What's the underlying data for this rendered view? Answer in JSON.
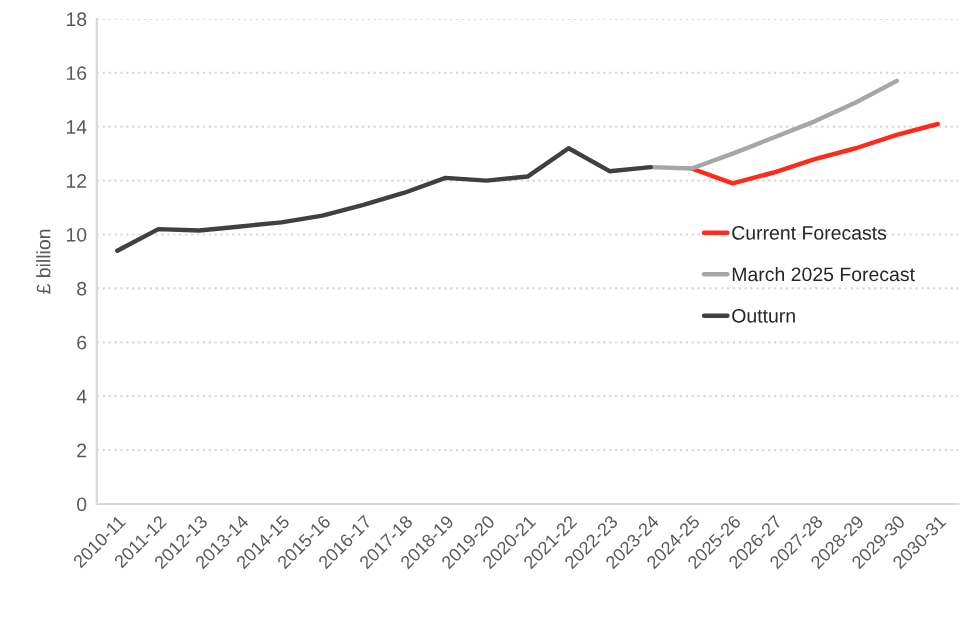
{
  "chart_data": {
    "type": "line",
    "ylabel": "£ billion",
    "categories": [
      "2010-11",
      "2011-12",
      "2012-13",
      "2013-14",
      "2014-15",
      "2015-16",
      "2016-17",
      "2017-18",
      "2018-19",
      "2019-20",
      "2020-21",
      "2021-22",
      "2022-23",
      "2023-24",
      "2024-25",
      "2025-26",
      "2026-27",
      "2027-28",
      "2028-29",
      "2029-30",
      "2030-31"
    ],
    "series": [
      {
        "name": "Current Forecasts",
        "color": "#ff2a1a",
        "values": [
          null,
          null,
          null,
          null,
          null,
          null,
          null,
          null,
          null,
          null,
          null,
          null,
          null,
          null,
          12.45,
          11.9,
          12.3,
          12.8,
          13.2,
          13.7,
          14.1
        ]
      },
      {
        "name": "March 2025 Forecast",
        "color": "#a6a6a6",
        "values": [
          null,
          null,
          null,
          null,
          null,
          null,
          null,
          null,
          null,
          null,
          null,
          null,
          null,
          12.5,
          12.45,
          13.0,
          13.6,
          14.2,
          14.9,
          15.7,
          null
        ]
      },
      {
        "name": "Outturn",
        "color": "#404040",
        "values": [
          9.4,
          10.2,
          10.15,
          10.3,
          10.45,
          10.7,
          11.1,
          11.55,
          12.1,
          12.0,
          12.15,
          13.2,
          12.35,
          12.5,
          null,
          null,
          null,
          null,
          null,
          null,
          null
        ]
      }
    ],
    "ylim": [
      0,
      18
    ],
    "yticks": [
      0,
      2,
      4,
      6,
      8,
      10,
      12,
      14,
      16,
      18
    ],
    "grid": "y",
    "legend": "right",
    "marker": "none",
    "line_style": "solid"
  }
}
